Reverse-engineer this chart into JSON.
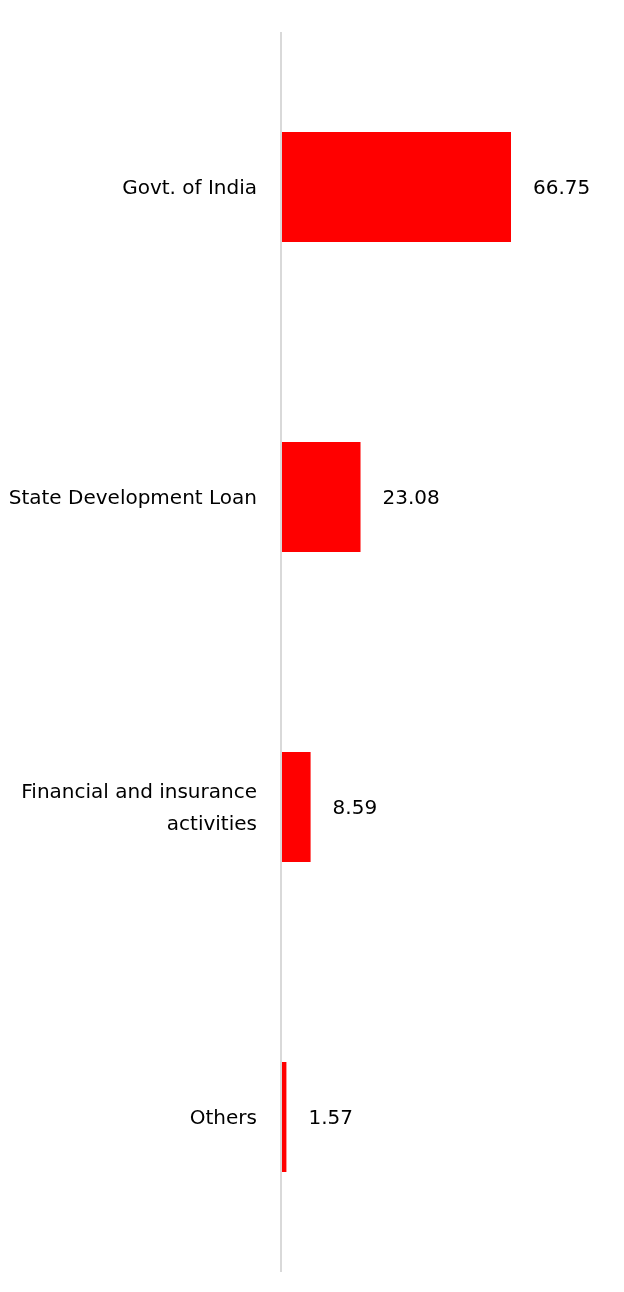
{
  "chart_data": {
    "type": "bar",
    "orientation": "horizontal",
    "categories": [
      "Govt. of India",
      "State Development Loan",
      "Financial and insurance activities",
      "Others"
    ],
    "values": [
      66.75,
      23.08,
      8.59,
      1.57
    ],
    "color": "#ff0000",
    "data_labels": true,
    "tick_labels": "y"
  }
}
